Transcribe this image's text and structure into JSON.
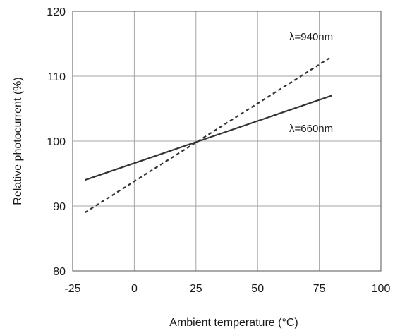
{
  "chart_data": {
    "type": "line",
    "title": "",
    "xlabel": "Ambient temperature (°C)",
    "ylabel": "Relative photocurrent (%)",
    "xlim": [
      -25,
      100
    ],
    "ylim": [
      80,
      120
    ],
    "xticks": [
      -25,
      0,
      25,
      50,
      75,
      100
    ],
    "yticks": [
      80,
      90,
      100,
      110,
      120
    ],
    "xtick_labels": [
      "-25",
      "0",
      "25",
      "50",
      "75",
      "100"
    ],
    "ytick_labels": [
      "80",
      "90",
      "100",
      "110",
      "120"
    ],
    "grid": true,
    "legend": "none",
    "series": [
      {
        "name": "λ=940nm",
        "style": "dashed",
        "color": "#333333",
        "x": [
          -20,
          80
        ],
        "y": [
          89,
          113
        ]
      },
      {
        "name": "λ=660nm",
        "style": "solid",
        "color": "#333333",
        "x": [
          -20,
          80
        ],
        "y": [
          94,
          107
        ]
      }
    ]
  }
}
